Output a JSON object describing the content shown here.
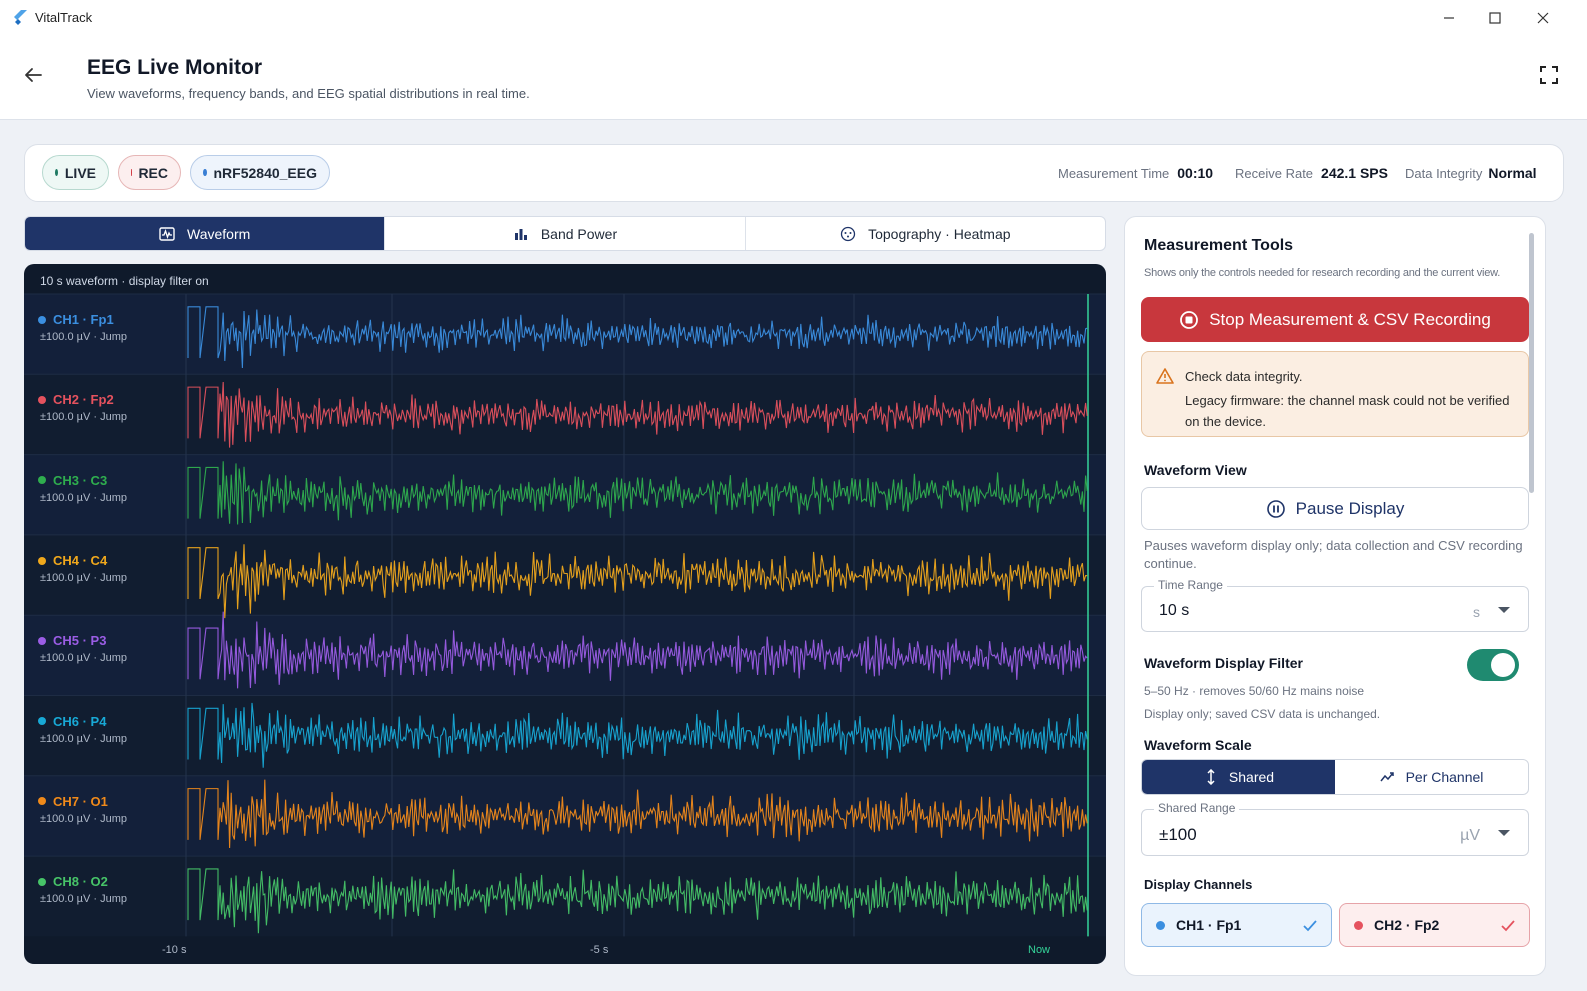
{
  "window": {
    "app_title": "VitalTrack"
  },
  "header": {
    "title": "EEG Live Monitor",
    "subtitle": "View waveforms, frequency bands, and EEG spatial distributions in real time."
  },
  "status": {
    "live": "LIVE",
    "rec": "REC",
    "device": "nRF52840_EEG",
    "measurement_time_label": "Measurement Time",
    "measurement_time": "00:10",
    "receive_rate_label": "Receive Rate",
    "receive_rate": "242.1 SPS",
    "integrity_label": "Data Integrity",
    "integrity": "Normal"
  },
  "tabs": [
    {
      "label": "Waveform",
      "icon": "waveform-icon",
      "active": true
    },
    {
      "label": "Band Power",
      "icon": "bar-chart-icon",
      "active": false
    },
    {
      "label": "Topography · Heatmap",
      "icon": "topography-icon",
      "active": false
    }
  ],
  "waveform": {
    "caption": "10 s waveform · display filter on",
    "x_labels": {
      "start": "-10 s",
      "mid": "-5 s",
      "end": "Now"
    },
    "channels": [
      {
        "name": "CH1 · Fp1",
        "scale": "±100.0 µV · Jump",
        "color": "#3b8fe0",
        "amp": 0.55
      },
      {
        "name": "CH2 · Fp2",
        "scale": "±100.0 µV · Jump",
        "color": "#e5525e",
        "amp": 0.65
      },
      {
        "name": "CH3 · C3",
        "scale": "±100.0 µV · Jump",
        "color": "#2fae4e",
        "amp": 0.85
      },
      {
        "name": "CH4 · C4",
        "scale": "±100.0 µV · Jump",
        "color": "#f0a81c",
        "amp": 0.9
      },
      {
        "name": "CH5 · P3",
        "scale": "±100.0 µV · Jump",
        "color": "#9b5de5",
        "amp": 0.9
      },
      {
        "name": "CH6 · P4",
        "scale": "±100.0 µV · Jump",
        "color": "#18a9d6",
        "amp": 0.95
      },
      {
        "name": "CH7 · O1",
        "scale": "±100.0 µV · Jump",
        "color": "#f08a1a",
        "amp": 0.95
      },
      {
        "name": "CH8 · O2",
        "scale": "±100.0 µV · Jump",
        "color": "#47c468",
        "amp": 1.0
      }
    ]
  },
  "tools": {
    "title": "Measurement Tools",
    "subtitle": "Shows only the controls needed for research recording and the current view.",
    "stop_label": "Stop Measurement & CSV Recording",
    "warning_title": "Check data integrity.",
    "warning_text": "Legacy firmware: the channel mask could not be verified on the device.",
    "waveform_view_title": "Waveform View",
    "pause_label": "Pause Display",
    "pause_hint": "Pauses waveform display only; data collection and CSV recording continue.",
    "time_range_label": "Time Range",
    "time_range_value": "10 s",
    "time_range_unit": "s",
    "filter_title": "Waveform Display Filter",
    "filter_enabled": true,
    "filter_desc": "5–50 Hz · removes 50/60 Hz mains noise",
    "filter_note": "Display only; saved CSV data is unchanged.",
    "scale_title": "Waveform Scale",
    "scale_shared": "Shared",
    "scale_per_channel": "Per Channel",
    "shared_range_label": "Shared Range",
    "shared_range_value": "±100",
    "shared_range_unit": "µV",
    "display_channels_title": "Display Channels",
    "chips": [
      {
        "label": "CH1 · Fp1",
        "color": "#3b8fe0",
        "checked": true
      },
      {
        "label": "CH2 · Fp2",
        "color": "#e5525e",
        "checked": true
      }
    ]
  },
  "colors": {
    "accent": "#1f3468",
    "danger": "#c8373d",
    "success": "#1f8a70",
    "now_line": "#34d399"
  }
}
